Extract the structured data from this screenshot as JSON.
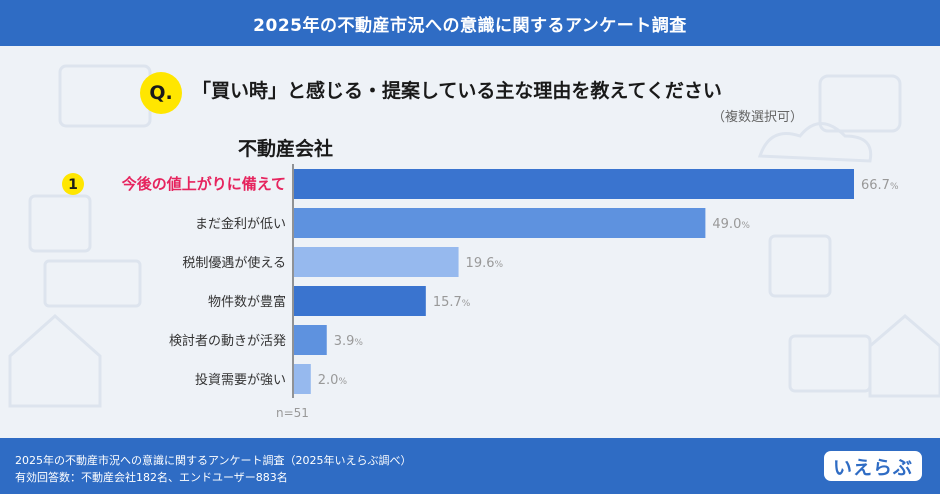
{
  "header": {
    "title": "2025年の不動産市況への意識に関するアンケート調査"
  },
  "question": {
    "badge": "Q.",
    "text": "「買い時」と感じる・提案している主な理由を教えてください",
    "note": "（複数選択可）"
  },
  "category_title": "不動産会社",
  "footer": {
    "line1": "2025年の不動産市況への意識に関するアンケート調査（2025年いえらぶ調べ）",
    "line2": "有効回答数：不動産会社182名、エンドユーザー883名",
    "logo": "いえらぶ"
  },
  "colors": {
    "header": "#2f6cc4",
    "accent": "#e6245e",
    "highlight": "#ffe600",
    "bar_dark": "#3a74cf",
    "bar_mid": "#5e92df",
    "bar_light": "#96b9ee"
  },
  "chart_data": {
    "type": "bar",
    "orientation": "horizontal",
    "categories": [
      "今後の値上がりに備えて",
      "まだ金利が低い",
      "税制優遇が使える",
      "物件数が豊富",
      "検討者の動きが活発",
      "投資需要が強い"
    ],
    "values": [
      66.7,
      49.0,
      19.6,
      15.7,
      3.9,
      2.0
    ],
    "value_labels": [
      "66.7",
      "49.0",
      "19.6",
      "15.7",
      "3.9",
      "2.0"
    ],
    "unit": "%",
    "highlight_rank": "1",
    "bar_colors": [
      "#3a74cf",
      "#5e92df",
      "#96b9ee",
      "#3a74cf",
      "#5e92df",
      "#96b9ee"
    ],
    "xlim": [
      0,
      70
    ],
    "sample": "n=51"
  }
}
